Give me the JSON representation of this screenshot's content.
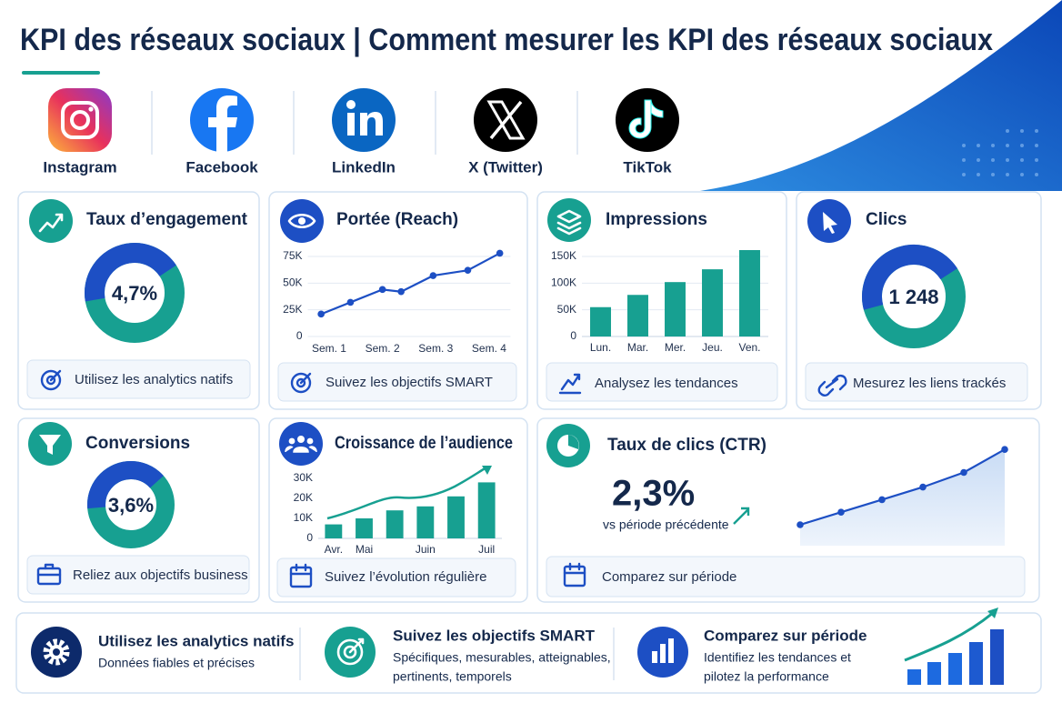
{
  "header": {
    "title": "KPI des réseaux sociaux | Comment mesurer les KPI des réseaux sociaux"
  },
  "platforms": [
    "Instagram",
    "Facebook",
    "LinkedIn",
    "X (Twitter)",
    "TikTok"
  ],
  "cards": {
    "engagement": {
      "title": "Taux d’engagement",
      "value": "4,7%",
      "tip": "Utilisez les analytics natifs"
    },
    "reach": {
      "title": "Portée (Reach)",
      "tip": "Suivez les objectifs SMART",
      "chart": {
        "type": "line",
        "x": [
          0.85,
          1.4,
          2,
          2.35,
          2.95,
          3.6,
          4.2
        ],
        "values": [
          21000,
          32000,
          44000,
          42000,
          57000,
          62000,
          78000
        ],
        "xlim": [
          0.6,
          4.4
        ],
        "xticks": [
          {
            "value": 1,
            "label": "Sem. 1"
          },
          {
            "value": 2,
            "label": "Sem. 2"
          },
          {
            "value": 3,
            "label": "Sem. 3"
          },
          {
            "value": 4,
            "label": "Sem. 4"
          }
        ],
        "ylim": [
          0,
          80000
        ],
        "yticks": [
          0,
          {
            "value": 25000,
            "label": "25K"
          },
          {
            "value": 50000,
            "label": "50K"
          },
          {
            "value": 75000,
            "label": "75K"
          }
        ],
        "color": "#1d4fc4",
        "grid": true
      }
    },
    "impressions": {
      "title": "Impressions",
      "tip": "Analysez les tendances",
      "chart": {
        "type": "bar",
        "categories": [
          "Lun.",
          "Mar.",
          "Mer.",
          "Jeu.",
          "Ven."
        ],
        "values": [
          55000,
          78000,
          102000,
          126000,
          162000
        ],
        "ylim": [
          0,
          170000
        ],
        "yticks": [
          0,
          {
            "value": 50000,
            "label": "50K"
          },
          {
            "value": 100000,
            "label": "100K"
          },
          {
            "value": 150000,
            "label": "150K"
          }
        ],
        "color": "#17a091",
        "grid": true
      }
    },
    "clicks": {
      "title": "Clics",
      "value": "1 248",
      "tip": "Mesurez les liens trackés"
    },
    "conversions": {
      "title": "Conversions",
      "value": "3,6%",
      "tip": "Reliez aux objectifs business"
    },
    "audience": {
      "title": "Croissance de l’audience",
      "tip": "Suivez l’évolution régulière",
      "chart": {
        "type": "bar",
        "categories": [
          "Avr.",
          "Mai",
          null,
          "Juin",
          null,
          "Juil"
        ],
        "values": [
          7000,
          10000,
          14000,
          16000,
          21000,
          28000
        ],
        "ylim": [
          0,
          32000
        ],
        "yticks": [
          0,
          {
            "value": 10000,
            "label": "10K"
          },
          {
            "value": 20000,
            "label": "20K"
          },
          {
            "value": 30000,
            "label": "30K"
          }
        ],
        "color": "#17a091",
        "grid": false
      }
    },
    "ctr": {
      "title": "Taux de clics (CTR)",
      "value": "2,3%",
      "note": "vs période précédente",
      "tip": "Comparez sur période",
      "chart": {
        "type": "line",
        "values": [
          1,
          1.6,
          2.2,
          2.8,
          3.5,
          4.6
        ],
        "ylim": [
          0,
          5
        ],
        "color": "#1d4fc4",
        "area": true
      }
    }
  },
  "footer": [
    {
      "title": "Utilisez les analytics natifs",
      "lines": [
        "Données fiables et précises"
      ]
    },
    {
      "title": "Suivez les objectifs SMART",
      "lines": [
        "Spécifiques, mesurables, atteignables,",
        "pertinents, temporels"
      ]
    },
    {
      "title": "Comparez sur période",
      "lines": [
        "Identifiez les tendances et",
        "pilotez la performance"
      ]
    }
  ]
}
